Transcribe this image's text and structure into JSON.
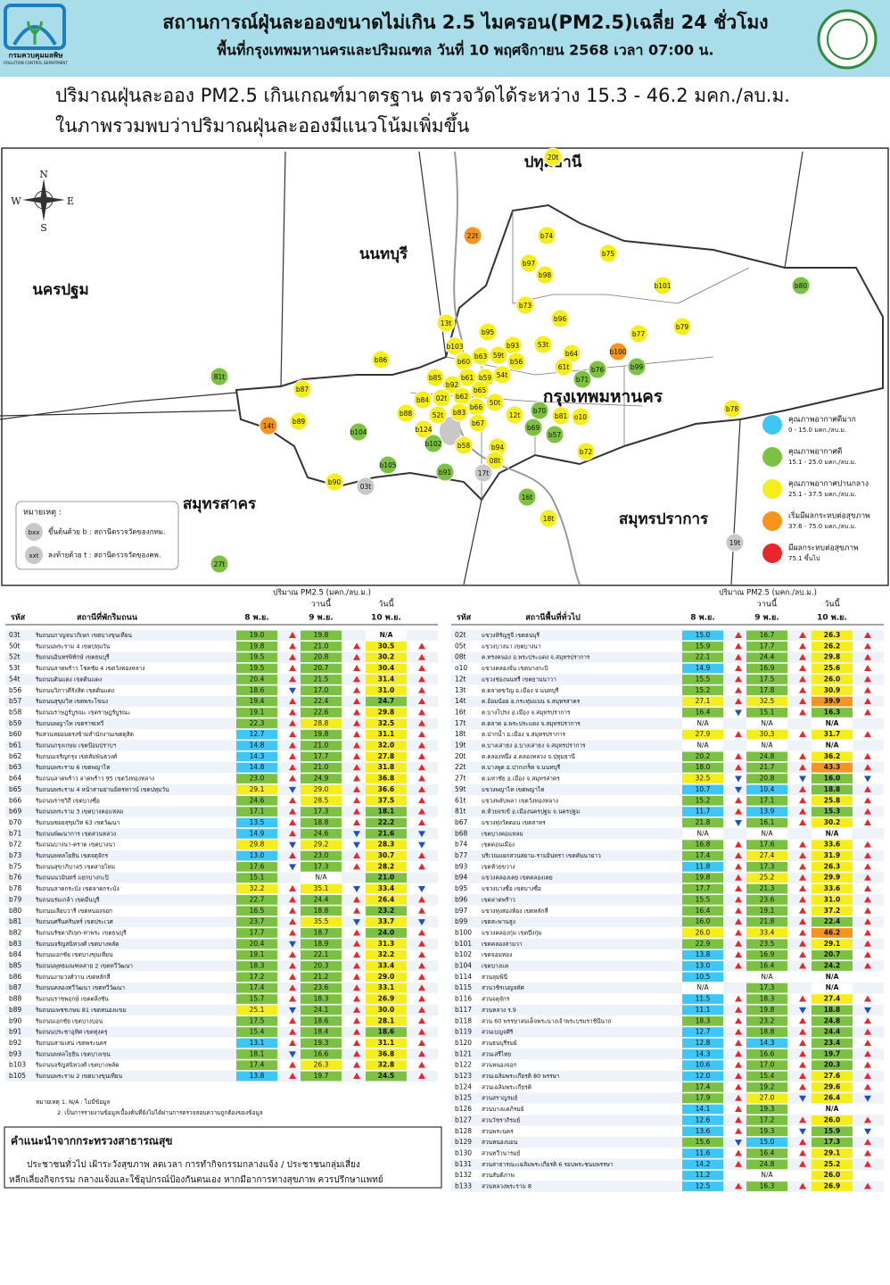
{
  "header": {
    "agency": "กรมควบคุมมลพิษ",
    "agency_en": "POLLUTION CONTROL DEPARTMENT",
    "title": "สถานการณ์ฝุ่นละอองขนาดไม่เกิน 2.5 ไมครอน(PM2.5)เฉลี่ย 24 ชั่วโมง",
    "subtitle": "พื้นที่กรุงเทพมหานครและปริมณฑล วันที่ 10 พฤศจิกายน 2568 เวลา 07:00 น."
  },
  "summary": [
    "ปริมาณฝุ่นละออง PM2.5 เกินเกณฑ์มาตรฐาน ตรวจวัดได้ระหว่าง 15.3 - 46.2 มคก./ลบ.ม.",
    "ในภาพรวมพบว่าปริมาณฝุ่นละอองมีแนวโน้มเพิ่มขึ้น"
  ],
  "map": {
    "compass": [
      "N",
      "E",
      "S",
      "W"
    ],
    "provinces": [
      "ปทุมธานี",
      "นนทบุรี",
      "นครปฐม",
      "กรุงเทพมหานคร",
      "สมุทรสาคร",
      "สมุทรปราการ"
    ],
    "stations": [
      {
        "label": "20t",
        "color": "#f5ee1c"
      },
      {
        "label": "22t",
        "color": "#f7941d"
      },
      {
        "label": "b74",
        "color": "#f5ee1c"
      },
      {
        "label": "b75",
        "color": "#f5ee1c"
      },
      {
        "label": "b97",
        "color": "#f5ee1c"
      },
      {
        "label": "b98",
        "color": "#f5ee1c"
      },
      {
        "label": "b101",
        "color": "#f5ee1c"
      },
      {
        "label": "b80",
        "color": "#7cc142"
      },
      {
        "label": "b73",
        "color": "#f5ee1c"
      },
      {
        "label": "b96",
        "color": "#f5ee1c"
      },
      {
        "label": "13t",
        "color": "#f5ee1c"
      },
      {
        "label": "b95",
        "color": "#f5ee1c"
      },
      {
        "label": "b77",
        "color": "#f5ee1c"
      },
      {
        "label": "b79",
        "color": "#f5ee1c"
      },
      {
        "label": "b103",
        "color": "#f5ee1c"
      },
      {
        "label": "b93",
        "color": "#f5ee1c"
      },
      {
        "label": "53t",
        "color": "#f5ee1c"
      },
      {
        "label": "b100",
        "color": "#f7941d"
      },
      {
        "label": "b64",
        "color": "#f5ee1c"
      },
      {
        "label": "59t",
        "color": "#f5ee1c"
      },
      {
        "label": "b63",
        "color": "#f5ee1c"
      },
      {
        "label": "b56",
        "color": "#f5ee1c"
      },
      {
        "label": "b60",
        "color": "#f5ee1c"
      },
      {
        "label": "b99",
        "color": "#7cc142"
      },
      {
        "label": "b86",
        "color": "#f5ee1c"
      },
      {
        "label": "61t",
        "color": "#f5ee1c"
      },
      {
        "label": "b76",
        "color": "#7cc142"
      },
      {
        "label": "b71",
        "color": "#7cc142"
      },
      {
        "label": "54t",
        "color": "#f5ee1c"
      },
      {
        "label": "b59",
        "color": "#f5ee1c"
      },
      {
        "label": "b61",
        "color": "#f5ee1c"
      },
      {
        "label": "b85",
        "color": "#f5ee1c"
      },
      {
        "label": "81t",
        "color": "#7cc142"
      },
      {
        "label": "b92",
        "color": "#f5ee1c"
      },
      {
        "label": "b65",
        "color": "#f5ee1c"
      },
      {
        "label": "b87",
        "color": "#f5ee1c"
      },
      {
        "label": "02t",
        "color": "#f5ee1c"
      },
      {
        "label": "b62",
        "color": "#f5ee1c"
      },
      {
        "label": "b84",
        "color": "#f5ee1c"
      },
      {
        "label": "50t",
        "color": "#f5ee1c"
      },
      {
        "label": "b66",
        "color": "#f5ee1c"
      },
      {
        "label": "b70",
        "color": "#7cc142"
      },
      {
        "label": "b81",
        "color": "#f5ee1c"
      },
      {
        "label": "o10",
        "color": "#f5ee1c"
      },
      {
        "label": "12t",
        "color": "#f5ee1c"
      },
      {
        "label": "b88",
        "color": "#f5ee1c"
      },
      {
        "label": "52t",
        "color": "#f5ee1c"
      },
      {
        "label": "b83",
        "color": "#f5ee1c"
      },
      {
        "label": "b67",
        "color": "#f5ee1c"
      },
      {
        "label": "b89",
        "color": "#f5ee1c"
      },
      {
        "label": "14t",
        "color": "#f7941d"
      },
      {
        "label": "b78",
        "color": "#f5ee1c"
      },
      {
        "label": "b124",
        "color": "#f5ee1c"
      },
      {
        "label": "b69",
        "color": "#7cc142"
      },
      {
        "label": "b57",
        "color": "#7cc142"
      },
      {
        "label": "b104",
        "color": "#7cc142"
      },
      {
        "label": "b102",
        "color": "#7cc142"
      },
      {
        "label": "b58",
        "color": "#f5ee1c"
      },
      {
        "label": "b94",
        "color": "#f5ee1c"
      },
      {
        "label": "b72",
        "color": "#f5ee1c"
      },
      {
        "label": "08t",
        "color": "#f5ee1c"
      },
      {
        "label": "b105",
        "color": "#7cc142"
      },
      {
        "label": "b91",
        "color": "#7cc142"
      },
      {
        "label": "17t",
        "color": "#c8c8c8"
      },
      {
        "label": "b90",
        "color": "#f5ee1c"
      },
      {
        "label": "03t",
        "color": "#c8c8c8"
      },
      {
        "label": "16t",
        "color": "#7cc142"
      },
      {
        "label": "18t",
        "color": "#f5ee1c"
      },
      {
        "label": "19t",
        "color": "#c8c8c8"
      },
      {
        "label": "27t",
        "color": "#7cc142"
      }
    ],
    "legend": [
      {
        "label": "คุณภาพอากาศดีมาก",
        "range": "0 - 15.0 มคก./ลบ.ม.",
        "color": "#3ec7f4"
      },
      {
        "label": "คุณภาพอากาศดี",
        "range": "15.1 - 25.0 มคก./ลบ.ม.",
        "color": "#7cc142"
      },
      {
        "label": "คุณภาพอากาศปานกลาง",
        "range": "25.1 - 37.5 มคก./ลบ.ม.",
        "color": "#f5ee1c"
      },
      {
        "label": "เริ่มมีผลกระทบต่อสุขภาพ",
        "range": "37.6 - 75.0 มคก./ลบ.ม.",
        "color": "#f7941d"
      },
      {
        "label": "มีผลกระทบต่อสุขภาพ",
        "range": "75.1 ขึ้นไป",
        "color": "#e8262b"
      }
    ],
    "note": {
      "title": "หมายเหตุ :",
      "b_icon": "bxx",
      "b_text": "ขึ้นต้นด้วย b : สถานีตรวจวัดของกทม.",
      "t_icon": "xxt",
      "t_text": "ลงท้ายด้วย t : สถานีตรวจวัดของคพ."
    }
  },
  "table_left": {
    "unit": "ปริมาณ PM2.5 (มคก./ลบ.ม.)",
    "yesterday": "วานนี้",
    "today": "วันนี้",
    "headers": [
      "รหัส",
      "สถานีที่พักริมถนน",
      "8 พ.ย.",
      "9 พ.ย.",
      "10 พ.ย."
    ],
    "rows": [
      [
        "03t",
        "ริมถนนกาญจนาภิเษก เขตบางขุนเทียน",
        "19.0",
        "19.8",
        "N/A"
      ],
      [
        "50t",
        "ริมถนนพระราม 4 เขตปทุมวัน",
        "19.8",
        "21.0",
        "30.5"
      ],
      [
        "52t",
        "ริมถนนอินทรพิทักษ์ เขตธนบุรี",
        "19.5",
        "20.8",
        "30.2"
      ],
      [
        "53t",
        "ริมถนนลาดพร้าว โชคชัย 4 เขตวังทองหลาง",
        "19.5",
        "20.7",
        "30.4"
      ],
      [
        "54t",
        "ริมถนนดินแดง เขตดินแดง",
        "20.4",
        "21.5",
        "31.4"
      ],
      [
        "b56",
        "ริมถนนวิภาวดีรังสิต เขตดินแดง",
        "18.6",
        "17.0",
        "31.0"
      ],
      [
        "b57",
        "ริมถนนสุขุมวิท เขตพระโขนง",
        "19.4",
        "22.4",
        "24.7"
      ],
      [
        "b58",
        "ริมถนนราษฎร์บูรณะ เขตราษฎร์บูรณะ",
        "19.1",
        "22.6",
        "29.8"
      ],
      [
        "b59",
        "ริมถนนพญาไท เขตราชเทวี",
        "22.3",
        "28.8",
        "32.5"
      ],
      [
        "b60",
        "ริมสวนหย่อมตรงข้ามสำนักงานเขตดุสิต",
        "12.7",
        "19.8",
        "31.1"
      ],
      [
        "b61",
        "ริมถนนกรุงเกษม เขตป้อมปราบฯ",
        "14.8",
        "21.0",
        "32.0"
      ],
      [
        "b62",
        "ริมถนนเจริญกรุง เขตสัมพันธวงศ์",
        "14.3",
        "17.7",
        "27.8"
      ],
      [
        "b63",
        "ริมถนนพระราม 6 เขตพญาไท",
        "14.8",
        "21.0",
        "31.8"
      ],
      [
        "b64",
        "ริมถนนลาดพร้าว ลาดพร้าว 95 เขตวังทองหลาง",
        "23.0",
        "24.9",
        "36.8"
      ],
      [
        "b65",
        "ริมถนนพระราม 4 หน้าสามย่านมิตรทาวน์ เขตปทุมวัน",
        "29.1",
        "29.0",
        "36.6"
      ],
      [
        "b66",
        "ริมถนนราชวิถี เขตบางซื่อ",
        "24.6",
        "28.5",
        "37.5"
      ],
      [
        "b69",
        "ริมถนนพระราม 3 เขตบางคอแหลม",
        "17.1",
        "17.3",
        "18.1"
      ],
      [
        "b70",
        "ริมถนนซอยสุขุมวิท 63 เขตวัฒนา",
        "13.5",
        "18.8",
        "22.2"
      ],
      [
        "b71",
        "ริมถนนพัฒนาการ เขตสวนหลวง",
        "14.9",
        "24.6",
        "21.6"
      ],
      [
        "b72",
        "ริมถนนบางนา-ตราด เขตบางนา",
        "29.8",
        "29.2",
        "28.3"
      ],
      [
        "b73",
        "ริมถนนพหลโยธิน เขตจตุจักร",
        "13.0",
        "23.0",
        "30.7"
      ],
      [
        "b75",
        "ริมถนนสุขาภิบาล5 เขตสายไหม",
        "17.6",
        "17.3",
        "28.2"
      ],
      [
        "b76",
        "ริมถนนนวมินทร์ แยกบางกะปิ",
        "15.1",
        "N/A",
        "21.0"
      ],
      [
        "b78",
        "ริมถนนลาดกระบัง เขตลาดกระบัง",
        "32.2",
        "35.1",
        "33.4"
      ],
      [
        "b79",
        "ริมถนนร่มเกล้า เขตมีนบุรี",
        "22.7",
        "24.4",
        "26.4"
      ],
      [
        "b80",
        "ริมถนนเลียบวารี เขตหนองจอก",
        "16.5",
        "18.8",
        "23.2"
      ],
      [
        "b81",
        "ริมถนนศรีนครินทร์ เขตประเวศ",
        "23.7",
        "35.5",
        "33.7"
      ],
      [
        "b82",
        "ริมถนนรัชดาภิเษก-ท่าพระ เขตธนบุรี",
        "17.7",
        "18.7",
        "24.0"
      ],
      [
        "b83",
        "ริมถนนจรัญสนิทวงศ์ เขตบางพลัด",
        "20.4",
        "18.9",
        "31.3"
      ],
      [
        "b84",
        "ริมถนนเอกชัย เขตบางขุนเทียน",
        "19.1",
        "22.1",
        "32.2"
      ],
      [
        "b85",
        "ริมถนนพุทธมณฑลสาย 2 เขตทวีวัฒนา",
        "18.3",
        "20.3",
        "33.4"
      ],
      [
        "b86",
        "ริมถนนงามวงศ์วาน เขตหลักสี่",
        "17.2",
        "21.2",
        "29.0"
      ],
      [
        "b87",
        "ริมถนนคลองทวีวัฒนา เขตทวีวัฒนา",
        "17.4",
        "23.6",
        "33.1"
      ],
      [
        "b88",
        "ริมถนนราชพฤกษ์ เขตตลิ่งชัน",
        "15.7",
        "18.3",
        "26.9"
      ],
      [
        "b89",
        "ริมถนนเพชรเกษม 81 เขตหนองแขม",
        "25.1",
        "24.1",
        "30.0"
      ],
      [
        "b90",
        "ริมถนนเอกชัย เขตบางบอน",
        "17.5",
        "18.6",
        "28.1"
      ],
      [
        "b91",
        "ริมถนนประชาอุทิศ เขตทุ่งครุ",
        "15.4",
        "18.4",
        "18.6"
      ],
      [
        "b92",
        "ริมถนนสามเสน เขตพระนคร",
        "13.1",
        "19.3",
        "31.1"
      ],
      [
        "b93",
        "ริมถนนพหลโยธิน เขตบางเขน",
        "18.1",
        "16.6",
        "36.8"
      ],
      [
        "b103",
        "ริมถนนจรัญสนิทวงศ์ เขตบางพลัด",
        "17.4",
        "26.3",
        "32.8"
      ],
      [
        "b105",
        "ริมถนนพระราม 2 เขตบางขุนเทียน",
        "13.8",
        "19.7",
        "24.5"
      ]
    ],
    "notes": [
      "หมายเหตุ 1. N/A : ไม่มีข้อมูล",
      "2. เป็นการรายงานข้อมูลเบื้องต้นที่ยังไม่ได้ผ่านการตรวจสอบความถูกต้องของข้อมูล"
    ]
  },
  "table_right": {
    "unit": "ปริมาณ PM2.5 (มคก./ลบ.ม.)",
    "yesterday": "วานนี้",
    "today": "วันนี้",
    "headers": [
      "รหัส",
      "สถานีพื้นที่ทั่วไป",
      "8 พ.ย.",
      "9 พ.ย.",
      "10 พ.ย."
    ],
    "rows": [
      [
        "02t",
        "แขวงหิรัญรูจี เขตธนบุรี",
        "15.0",
        "16.7",
        "26.3"
      ],
      [
        "05t",
        "แขวงบางนา เขตบางนา",
        "15.9",
        "17.7",
        "26.2"
      ],
      [
        "08t",
        "ต.ทรงคนอง อ.พระประแดง จ.สมุทรปราการ",
        "22.1",
        "24.4",
        "29.8"
      ],
      [
        "o10",
        "แขวงคลองจั่น เขตบางกะปิ",
        "14.9",
        "16.9",
        "25.6"
      ],
      [
        "12t",
        "แขวงช่องนนทรี เขตยานนาวา",
        "15.5",
        "17.5",
        "26.0"
      ],
      [
        "13t",
        "ต.ตลาดขวัญ อ.เมือง จ.นนทบุรี",
        "15.2",
        "17.8",
        "30.9"
      ],
      [
        "14t",
        "ต.อ้อมน้อย อ.กระทุ่มแบน จ.สมุทรสาคร",
        "27.1",
        "32.5",
        "39.9"
      ],
      [
        "16t",
        "ต.บางโปรง อ.เมือง จ.สมุทรปราการ",
        "16.4",
        "15.1",
        "16.3"
      ],
      [
        "17t",
        "ต.ตลาด อ.พระประแดง จ.สมุทรปราการ",
        "N/A",
        "N/A",
        "N/A"
      ],
      [
        "18t",
        "ต.ปากน้ำ อ.เมือง จ.สมุทรปราการ",
        "27.9",
        "30.3",
        "31.7"
      ],
      [
        "19t",
        "ต.บางเสาธง อ.บางเสาธง จ.สมุทรปราการ",
        "N/A",
        "N/A",
        "N/A"
      ],
      [
        "20t",
        "ต.คลองหนึ่ง อ.คลองหลวง จ.ปทุมธานี",
        "20.2",
        "24.8",
        "36.2"
      ],
      [
        "22t",
        "ต.บางพูด อ.ปากเกร็ด จ.นนทบุรี",
        "18.0",
        "21.7",
        "43.3"
      ],
      [
        "27t",
        "ต.มหาชัย อ.เมือง จ.สมุทรสาคร",
        "32.5",
        "20.8",
        "16.0"
      ],
      [
        "59t",
        "แขวงพญาไท เขตพญาไท",
        "10.7",
        "10.4",
        "18.8"
      ],
      [
        "61t",
        "แขวงพลับพลา เขตวังทองหลาง",
        "15.2",
        "17.1",
        "25.8"
      ],
      [
        "81t",
        "ต.ห้วยจรเข้ อ.เมืองนครปฐม จ.นครปฐม",
        "11.7",
        "13.9",
        "15.3"
      ],
      [
        "b67",
        "แขวงทุ่งวัดดอน เขตสาทร",
        "21.8",
        "16.1",
        "30.2"
      ],
      [
        "b68",
        "เขตบางคอแหลม",
        "N/A",
        "N/A",
        "N/A"
      ],
      [
        "b74",
        "เขตดอนเมือง",
        "16.8",
        "17.6",
        "33.6"
      ],
      [
        "b77",
        "บริเวณแยกสวนสยาม-รามอินทรา เขตคันนายาว",
        "17.4",
        "27.4",
        "31.9"
      ],
      [
        "b93",
        "เขตห้วยขวาง",
        "11.8",
        "17.3",
        "26.3"
      ],
      [
        "b94",
        "แขวงคลองเตย เขตคลองเตย",
        "19.8",
        "25.2",
        "29.9"
      ],
      [
        "b95",
        "แขวงบางซื่อ เขตบางซื่อ",
        "17.7",
        "21.3",
        "33.6"
      ],
      [
        "b96",
        "เขตลาดพร้าว",
        "15.5",
        "23.6",
        "31.0"
      ],
      [
        "b97",
        "แขวงทุ่งสองห้อง เขตหลักสี่",
        "16.4",
        "19.1",
        "37.2"
      ],
      [
        "b99",
        "เขตสะพานสูง",
        "16.0",
        "21.8",
        "22.4"
      ],
      [
        "b100",
        "แขวงคลองกุ่ม เขตบึงกุ่ม",
        "26.0",
        "33.4",
        "46.2"
      ],
      [
        "b101",
        "เขตคลองสามวา",
        "22.9",
        "23.5",
        "29.1"
      ],
      [
        "b102",
        "เขตจอมทอง",
        "13.8",
        "16.9",
        "20.7"
      ],
      [
        "b104",
        "เขตบางแค",
        "13.0",
        "16.4",
        "24.2"
      ],
      [
        "b114",
        "สวนลุมพินี",
        "10.5",
        "N/A",
        "N/A"
      ],
      [
        "b115",
        "สวนวชิรเบญจทัศ",
        "N/A",
        "17.3",
        "N/A"
      ],
      [
        "b116",
        "สวนจตุจักร",
        "11.5",
        "18.3",
        "27.4"
      ],
      [
        "b117",
        "สวนหลวง ร.9",
        "11.1",
        "19.8",
        "18.8"
      ],
      [
        "b118",
        "สวน 60 พรรษาสมเด็จพระนางเจ้าพระบรมราชินีนาถ",
        "18.3",
        "23.2",
        "24.8"
      ],
      [
        "b119",
        "สวนเบญจศิริ",
        "12.7",
        "18.8",
        "24.4"
      ],
      [
        "b120",
        "สวนธนบุรีรมย์",
        "12.8",
        "14.3",
        "23.4"
      ],
      [
        "b121",
        "สวนเสรีไทย",
        "14.3",
        "16.6",
        "19.7"
      ],
      [
        "b122",
        "สวนหนองจอก",
        "10.6",
        "17.0",
        "20.3"
      ],
      [
        "b123",
        "สวนเฉลิมพระเกียรติ 80 พรรษา",
        "12.0",
        "15.4",
        "27.6"
      ],
      [
        "b124",
        "สวนเฉลิมพระเกียรติ",
        "17.4",
        "19.2",
        "29.6"
      ],
      [
        "b125",
        "สวนสราญรมย์",
        "17.9",
        "27.0",
        "26.4"
      ],
      [
        "b126",
        "สวนบางแคภิรมย์",
        "14.1",
        "19.3",
        "N/A"
      ],
      [
        "b127",
        "สวนวัชราภิรมย์",
        "12.6",
        "17.2",
        "26.0"
      ],
      [
        "b128",
        "สวนพระนคร",
        "13.6",
        "19.3",
        "15.9"
      ],
      [
        "b129",
        "สวนหนองบอน",
        "15.6",
        "15.0",
        "17.3"
      ],
      [
        "b130",
        "สวนทวีวนารมย์",
        "11.6",
        "16.4",
        "29.1"
      ],
      [
        "b131",
        "สวนสาธารณะเฉลิมพระเกียรติ 6 รอบพระชนมพรรษา",
        "14.2",
        "24.8",
        "25.2"
      ],
      [
        "b132",
        "สวนสันติภาพ",
        "11.2",
        "N/A",
        "26.0"
      ],
      [
        "b133",
        "สวนหลวงพระราม 8",
        "12.5",
        "16.3",
        "26.9"
      ]
    ]
  },
  "advice": {
    "title": "คำแนะนำจากกระทรวงสาธารณสุข",
    "lines": [
      "ประชาชนทั่วไป เฝ้าระวังสุขภาพ ลดเวลา การทำกิจกรรมกลางแจ้ง / ประชาชนกลุ่มเสี่ยง",
      "หลีกเลี่ยงกิจกรรม กลางแจ้งและใช้อุปกรณ์ป้องกันตนเอง หากมีอาการทางสุขภาพ ควรปรึกษาแพทย์"
    ]
  }
}
